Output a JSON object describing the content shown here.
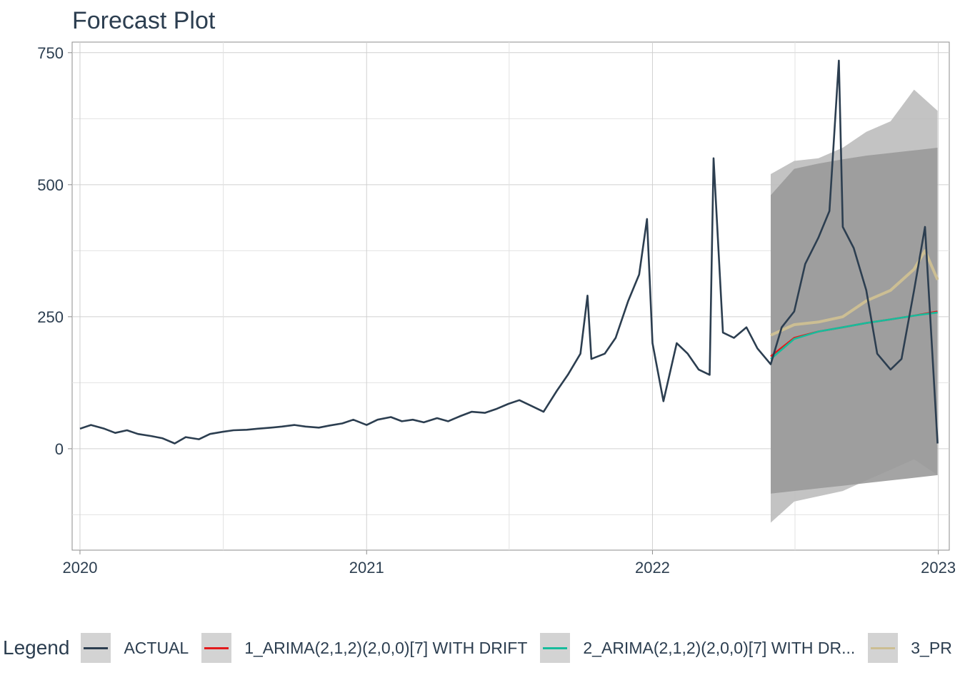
{
  "title": "Forecast Plot",
  "legend": {
    "title": "Legend",
    "items": [
      {
        "label": "ACTUAL",
        "color": "#2c3e50"
      },
      {
        "label": "1_ARIMA(2,1,2)(2,0,0)[7] WITH DRIFT",
        "color": "#e31a1c"
      },
      {
        "label": "2_ARIMA(2,1,2)(2,0,0)[7] WITH DR...",
        "color": "#18bc9c"
      },
      {
        "label": "3_PR",
        "color": "#ccbe93"
      }
    ]
  },
  "chart_data": {
    "type": "line",
    "title": "Forecast Plot",
    "xlabel": "",
    "ylabel": "",
    "x_ticks": [
      "2020",
      "2021",
      "2022",
      "2023"
    ],
    "y_ticks": [
      0,
      250,
      500,
      750
    ],
    "xlim": [
      "2019-12-22",
      "2023-01-15"
    ],
    "ylim": [
      -192,
      770
    ],
    "grid": true,
    "legend_position": "bottom",
    "series": [
      {
        "name": "ACTUAL",
        "color": "#2c3e50",
        "x": [
          "2020-01-01",
          "2020-01-15",
          "2020-02-01",
          "2020-02-15",
          "2020-03-01",
          "2020-03-15",
          "2020-04-01",
          "2020-04-15",
          "2020-05-01",
          "2020-05-15",
          "2020-06-01",
          "2020-06-15",
          "2020-07-01",
          "2020-07-15",
          "2020-08-01",
          "2020-08-15",
          "2020-09-01",
          "2020-09-15",
          "2020-10-01",
          "2020-10-15",
          "2020-11-01",
          "2020-11-15",
          "2020-12-01",
          "2020-12-15",
          "2021-01-01",
          "2021-01-15",
          "2021-02-01",
          "2021-02-15",
          "2021-03-01",
          "2021-03-15",
          "2021-04-01",
          "2021-04-15",
          "2021-05-01",
          "2021-05-15",
          "2021-06-01",
          "2021-06-15",
          "2021-07-01",
          "2021-07-15",
          "2021-08-01",
          "2021-08-15",
          "2021-09-01",
          "2021-09-15",
          "2021-10-01",
          "2021-10-10",
          "2021-10-15",
          "2021-11-01",
          "2021-11-15",
          "2021-12-01",
          "2021-12-15",
          "2021-12-25",
          "2022-01-01",
          "2022-01-15",
          "2022-02-01",
          "2022-02-15",
          "2022-03-01",
          "2022-03-15",
          "2022-03-20",
          "2022-04-01",
          "2022-04-15",
          "2022-05-01",
          "2022-05-15",
          "2022-06-01",
          "2022-06-15",
          "2022-07-01",
          "2022-07-15",
          "2022-08-01",
          "2022-08-15",
          "2022-08-27",
          "2022-09-01",
          "2022-09-15",
          "2022-10-01",
          "2022-10-15",
          "2022-11-01",
          "2022-11-15",
          "2022-12-01",
          "2022-12-15",
          "2022-12-31"
        ],
        "y": [
          38,
          45,
          38,
          30,
          35,
          28,
          24,
          20,
          10,
          22,
          18,
          28,
          32,
          35,
          36,
          38,
          40,
          42,
          45,
          42,
          40,
          44,
          48,
          55,
          45,
          55,
          60,
          52,
          55,
          50,
          58,
          52,
          62,
          70,
          68,
          75,
          85,
          92,
          80,
          70,
          110,
          140,
          180,
          290,
          170,
          180,
          210,
          280,
          330,
          435,
          200,
          90,
          200,
          180,
          150,
          140,
          550,
          220,
          210,
          230,
          190,
          160,
          230,
          260,
          350,
          400,
          450,
          735,
          420,
          380,
          300,
          180,
          150,
          170,
          300,
          420,
          10
        ]
      },
      {
        "name": "1_ARIMA(2,1,2)(2,0,0)[7] WITH DRIFT",
        "color": "#e31a1c",
        "x": [
          "2022-06-01",
          "2022-07-01",
          "2022-08-01",
          "2022-09-01",
          "2022-10-01",
          "2022-11-01",
          "2022-12-01",
          "2022-12-31"
        ],
        "y": [
          175,
          210,
          222,
          230,
          238,
          245,
          252,
          260
        ]
      },
      {
        "name": "2_ARIMA(2,1,2)(2,0,0)[7] WITH DR...",
        "color": "#18bc9c",
        "x": [
          "2022-06-01",
          "2022-07-01",
          "2022-08-01",
          "2022-09-01",
          "2022-10-01",
          "2022-11-01",
          "2022-12-01",
          "2022-12-31"
        ],
        "y": [
          170,
          208,
          222,
          230,
          238,
          245,
          252,
          258
        ]
      },
      {
        "name": "3_PR",
        "color": "#ccbe93",
        "x": [
          "2022-06-01",
          "2022-07-01",
          "2022-08-01",
          "2022-09-01",
          "2022-10-01",
          "2022-11-01",
          "2022-12-01",
          "2022-12-15",
          "2022-12-31"
        ],
        "y": [
          215,
          235,
          240,
          250,
          280,
          300,
          340,
          375,
          320
        ]
      }
    ],
    "confidence_bands": [
      {
        "color": "#bdbdbd",
        "x": [
          "2022-06-01",
          "2022-07-01",
          "2022-08-01",
          "2022-09-01",
          "2022-10-01",
          "2022-11-01",
          "2022-12-01",
          "2022-12-31"
        ],
        "lower": [
          -140,
          -100,
          -90,
          -80,
          -60,
          -40,
          -20,
          -50
        ],
        "upper": [
          520,
          545,
          550,
          570,
          600,
          620,
          680,
          640
        ]
      },
      {
        "color": "#9a9a9a",
        "x": [
          "2022-06-01",
          "2022-07-01",
          "2022-08-01",
          "2022-09-01",
          "2022-10-01",
          "2022-11-01",
          "2022-12-01",
          "2022-12-31"
        ],
        "lower": [
          -85,
          -80,
          -75,
          -70,
          -65,
          -60,
          -55,
          -50
        ],
        "upper": [
          480,
          530,
          540,
          548,
          555,
          560,
          565,
          570
        ]
      }
    ]
  }
}
